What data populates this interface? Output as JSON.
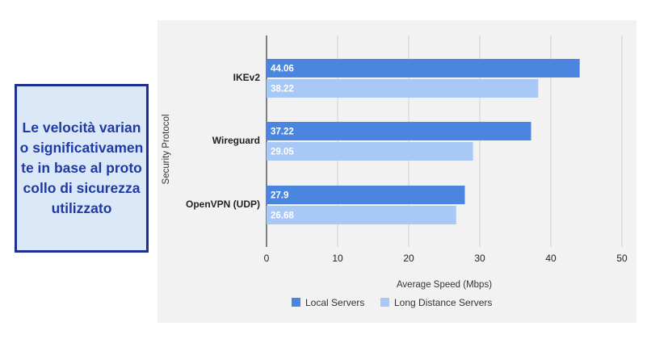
{
  "callout": {
    "text": "Le velocità variano significativamente in base al protocollo di sicurezza utilizzato",
    "background": "#dae8f7",
    "border_color": "#1f2f8f",
    "text_color": "#1f3aa3"
  },
  "chart_data": {
    "type": "bar",
    "orientation": "horizontal",
    "categories": [
      "IKEv2",
      "Wireguard",
      "OpenVPN (UDP)"
    ],
    "series": [
      {
        "name": "Local Servers",
        "values": [
          44.06,
          37.22,
          27.9
        ],
        "color": "#4a86e0"
      },
      {
        "name": "Long Distance Servers",
        "values": [
          38.22,
          29.05,
          26.68
        ],
        "color": "#a8c8f5"
      }
    ],
    "xlabel": "Average Speed (Mbps)",
    "ylabel": "Security Protocol",
    "xlim": [
      0,
      50
    ],
    "xticks": [
      0,
      10,
      20,
      30,
      40,
      50
    ],
    "grid": true,
    "legend": "bottom",
    "background": "#f2f2f2"
  }
}
